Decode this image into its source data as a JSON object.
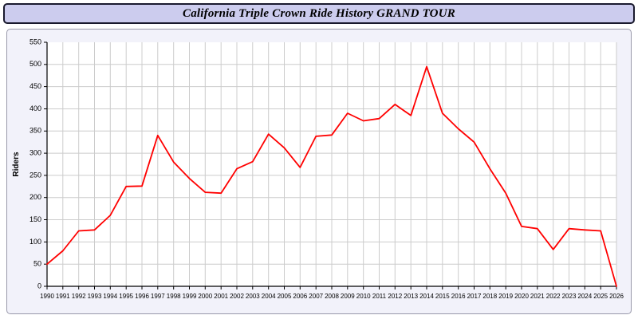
{
  "header": {
    "title": "California Triple Crown Ride History GRAND TOUR"
  },
  "chart_data": {
    "type": "line",
    "title": "California Triple Crown Ride History GRAND TOUR",
    "xlabel": "",
    "ylabel": "Riders",
    "ylim": [
      0,
      550
    ],
    "ytick_step": 50,
    "grid": true,
    "legend_position": "none",
    "line_color": "#ff0000",
    "grid_color": "#cccccc",
    "plot_bg": "#ffffff",
    "axis_color": "#000000",
    "x": [
      1990,
      1991,
      1992,
      1993,
      1994,
      1995,
      1996,
      1997,
      1998,
      1999,
      2000,
      2001,
      2002,
      2003,
      2004,
      2005,
      2006,
      2007,
      2008,
      2009,
      2010,
      2011,
      2012,
      2013,
      2014,
      2015,
      2016,
      2017,
      2018,
      2019,
      2020,
      2021,
      2022,
      2023,
      2024,
      2025,
      2026
    ],
    "series": [
      {
        "name": "Riders",
        "color": "#ff0000",
        "values": [
          50,
          80,
          125,
          127,
          160,
          225,
          226,
          340,
          280,
          243,
          212,
          210,
          265,
          281,
          343,
          312,
          268,
          338,
          341,
          390,
          373,
          378,
          410,
          385,
          495,
          390,
          355,
          325,
          265,
          210,
          135,
          130,
          83,
          130,
          127,
          125,
          0
        ]
      }
    ]
  }
}
